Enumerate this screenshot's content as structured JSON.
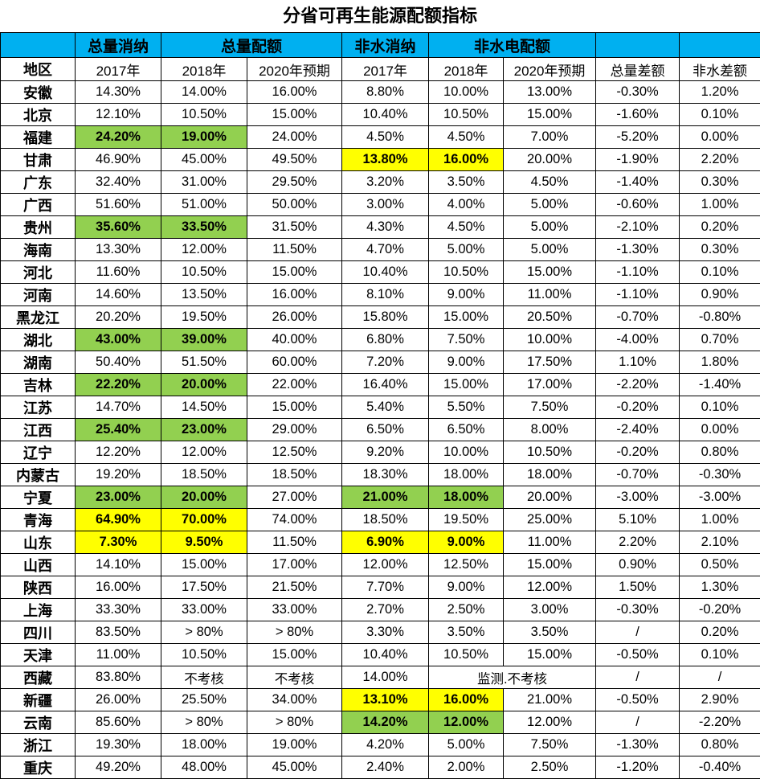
{
  "title": "分省可再生能源配额指标",
  "colors": {
    "header_bg": "#00B0F0",
    "highlight_green": "#92D050",
    "highlight_yellow": "#FFFF00",
    "border": "#000000"
  },
  "table": {
    "group_headers": [
      {
        "label": "",
        "span": 1
      },
      {
        "label": "总量消纳",
        "span": 1
      },
      {
        "label": "总量配额",
        "span": 2
      },
      {
        "label": "非水消纳",
        "span": 1
      },
      {
        "label": "非水电配额",
        "span": 2
      },
      {
        "label": "",
        "span": 1
      },
      {
        "label": "",
        "span": 1
      }
    ],
    "columns": [
      "地区",
      "2017年",
      "2018年",
      "2020年预期",
      "2017年",
      "2018年",
      "2020年预期",
      "总量差额",
      "非水差额"
    ],
    "rows": [
      {
        "region": "安徽",
        "values": [
          "14.30%",
          "14.00%",
          "16.00%",
          "8.80%",
          "10.00%",
          "13.00%",
          "-0.30%",
          "1.20%"
        ],
        "highlights": {}
      },
      {
        "region": "北京",
        "values": [
          "12.10%",
          "10.50%",
          "15.00%",
          "10.40%",
          "10.50%",
          "15.00%",
          "-1.60%",
          "0.10%"
        ],
        "highlights": {}
      },
      {
        "region": "福建",
        "values": [
          "24.20%",
          "19.00%",
          "24.00%",
          "4.50%",
          "4.50%",
          "7.00%",
          "-5.20%",
          "0.00%"
        ],
        "highlights": {
          "0": "green",
          "1": "green"
        }
      },
      {
        "region": "甘肃",
        "values": [
          "46.90%",
          "45.00%",
          "49.50%",
          "13.80%",
          "16.00%",
          "20.00%",
          "-1.90%",
          "2.20%"
        ],
        "highlights": {
          "3": "yellow",
          "4": "yellow"
        }
      },
      {
        "region": "广东",
        "values": [
          "32.40%",
          "31.00%",
          "29.50%",
          "3.20%",
          "3.50%",
          "4.50%",
          "-1.40%",
          "0.30%"
        ],
        "highlights": {}
      },
      {
        "region": "广西",
        "values": [
          "51.60%",
          "51.00%",
          "50.00%",
          "3.00%",
          "4.00%",
          "5.00%",
          "-0.60%",
          "1.00%"
        ],
        "highlights": {}
      },
      {
        "region": "贵州",
        "values": [
          "35.60%",
          "33.50%",
          "31.50%",
          "4.30%",
          "4.50%",
          "5.00%",
          "-2.10%",
          "0.20%"
        ],
        "highlights": {
          "0": "green",
          "1": "green"
        }
      },
      {
        "region": "海南",
        "values": [
          "13.30%",
          "12.00%",
          "11.50%",
          "4.70%",
          "5.00%",
          "5.00%",
          "-1.30%",
          "0.30%"
        ],
        "highlights": {}
      },
      {
        "region": "河北",
        "values": [
          "11.60%",
          "10.50%",
          "15.00%",
          "10.40%",
          "10.50%",
          "15.00%",
          "-1.10%",
          "0.10%"
        ],
        "highlights": {}
      },
      {
        "region": "河南",
        "values": [
          "14.60%",
          "13.50%",
          "16.00%",
          "8.10%",
          "9.00%",
          "11.00%",
          "-1.10%",
          "0.90%"
        ],
        "highlights": {}
      },
      {
        "region": "黑龙江",
        "values": [
          "20.20%",
          "19.50%",
          "26.00%",
          "15.80%",
          "15.00%",
          "20.50%",
          "-0.70%",
          "-0.80%"
        ],
        "highlights": {}
      },
      {
        "region": "湖北",
        "values": [
          "43.00%",
          "39.00%",
          "40.00%",
          "6.80%",
          "7.50%",
          "10.00%",
          "-4.00%",
          "0.70%"
        ],
        "highlights": {
          "0": "green",
          "1": "green"
        }
      },
      {
        "region": "湖南",
        "values": [
          "50.40%",
          "51.50%",
          "60.00%",
          "7.20%",
          "9.00%",
          "17.50%",
          "1.10%",
          "1.80%"
        ],
        "highlights": {}
      },
      {
        "region": "吉林",
        "values": [
          "22.20%",
          "20.00%",
          "22.00%",
          "16.40%",
          "15.00%",
          "17.00%",
          "-2.20%",
          "-1.40%"
        ],
        "highlights": {
          "0": "green",
          "1": "green"
        }
      },
      {
        "region": "江苏",
        "values": [
          "14.70%",
          "14.50%",
          "15.00%",
          "5.40%",
          "5.50%",
          "7.50%",
          "-0.20%",
          "0.10%"
        ],
        "highlights": {}
      },
      {
        "region": "江西",
        "values": [
          "25.40%",
          "23.00%",
          "29.00%",
          "6.50%",
          "6.50%",
          "8.00%",
          "-2.40%",
          "0.00%"
        ],
        "highlights": {
          "0": "green",
          "1": "green"
        }
      },
      {
        "region": "辽宁",
        "values": [
          "12.20%",
          "12.00%",
          "12.50%",
          "9.20%",
          "10.00%",
          "10.50%",
          "-0.20%",
          "0.80%"
        ],
        "highlights": {}
      },
      {
        "region": "内蒙古",
        "values": [
          "19.20%",
          "18.50%",
          "18.50%",
          "18.30%",
          "18.00%",
          "18.00%",
          "-0.70%",
          "-0.30%"
        ],
        "highlights": {}
      },
      {
        "region": "宁夏",
        "values": [
          "23.00%",
          "20.00%",
          "27.00%",
          "21.00%",
          "18.00%",
          "20.00%",
          "-3.00%",
          "-3.00%"
        ],
        "highlights": {
          "0": "green",
          "1": "green",
          "3": "green",
          "4": "green"
        }
      },
      {
        "region": "青海",
        "values": [
          "64.90%",
          "70.00%",
          "74.00%",
          "18.50%",
          "19.50%",
          "25.00%",
          "5.10%",
          "1.00%"
        ],
        "highlights": {
          "0": "yellow",
          "1": "yellow"
        }
      },
      {
        "region": "山东",
        "values": [
          "7.30%",
          "9.50%",
          "11.50%",
          "6.90%",
          "9.00%",
          "11.00%",
          "2.20%",
          "2.10%"
        ],
        "highlights": {
          "0": "yellow",
          "1": "yellow",
          "3": "yellow",
          "4": "yellow"
        }
      },
      {
        "region": "山西",
        "values": [
          "14.10%",
          "15.00%",
          "17.00%",
          "12.00%",
          "12.50%",
          "15.00%",
          "0.90%",
          "0.50%"
        ],
        "highlights": {}
      },
      {
        "region": "陕西",
        "values": [
          "16.00%",
          "17.50%",
          "21.50%",
          "7.70%",
          "9.00%",
          "12.00%",
          "1.50%",
          "1.30%"
        ],
        "highlights": {}
      },
      {
        "region": "上海",
        "values": [
          "33.30%",
          "33.00%",
          "33.00%",
          "2.70%",
          "2.50%",
          "3.00%",
          "-0.30%",
          "-0.20%"
        ],
        "highlights": {}
      },
      {
        "region": "四川",
        "values": [
          "83.50%",
          "> 80%",
          "> 80%",
          "3.30%",
          "3.50%",
          "3.50%",
          "/",
          "0.20%"
        ],
        "highlights": {}
      },
      {
        "region": "天津",
        "values": [
          "11.00%",
          "10.50%",
          "15.00%",
          "10.40%",
          "10.50%",
          "15.00%",
          "-0.50%",
          "0.10%"
        ],
        "highlights": {}
      },
      {
        "region": "西藏",
        "values": [
          "83.80%",
          "不考核",
          "不考核",
          "14.00%",
          "监测.不考核",
          "/",
          "/"
        ],
        "highlights": {},
        "colspans": [
          1,
          1,
          1,
          1,
          2,
          1,
          1
        ]
      },
      {
        "region": "新疆",
        "values": [
          "26.00%",
          "25.50%",
          "34.00%",
          "13.10%",
          "16.00%",
          "21.00%",
          "-0.50%",
          "2.90%"
        ],
        "highlights": {
          "3": "yellow",
          "4": "yellow"
        }
      },
      {
        "region": "云南",
        "values": [
          "85.60%",
          "> 80%",
          "> 80%",
          "14.20%",
          "12.00%",
          "12.00%",
          "/",
          "-2.20%"
        ],
        "highlights": {
          "3": "green",
          "4": "green"
        }
      },
      {
        "region": "浙江",
        "values": [
          "19.30%",
          "18.00%",
          "19.00%",
          "4.20%",
          "5.00%",
          "7.50%",
          "-1.30%",
          "0.80%"
        ],
        "highlights": {}
      },
      {
        "region": "重庆",
        "values": [
          "49.20%",
          "48.00%",
          "45.00%",
          "2.40%",
          "2.00%",
          "2.50%",
          "-1.20%",
          "-0.40%"
        ],
        "highlights": {}
      }
    ]
  }
}
